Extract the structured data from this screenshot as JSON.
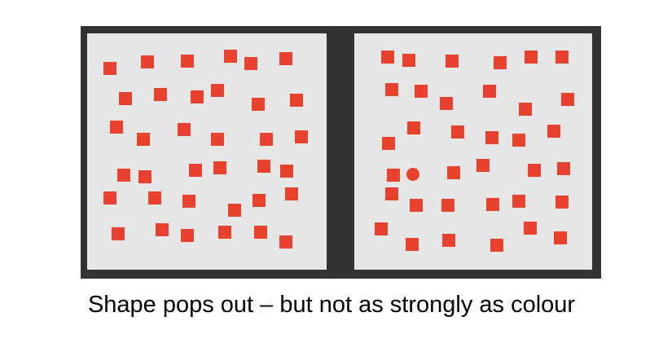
{
  "caption": "Shape pops out – but not as strongly as colour",
  "colors": {
    "frame": "#333333",
    "panel": "#e6e6e6",
    "item": "#e8412e"
  },
  "panels": [
    {
      "name": "left-panel",
      "distractor_shape": "square",
      "target_shape": null
    },
    {
      "name": "right-panel",
      "distractor_shape": "square",
      "target_shape": "circle"
    }
  ]
}
